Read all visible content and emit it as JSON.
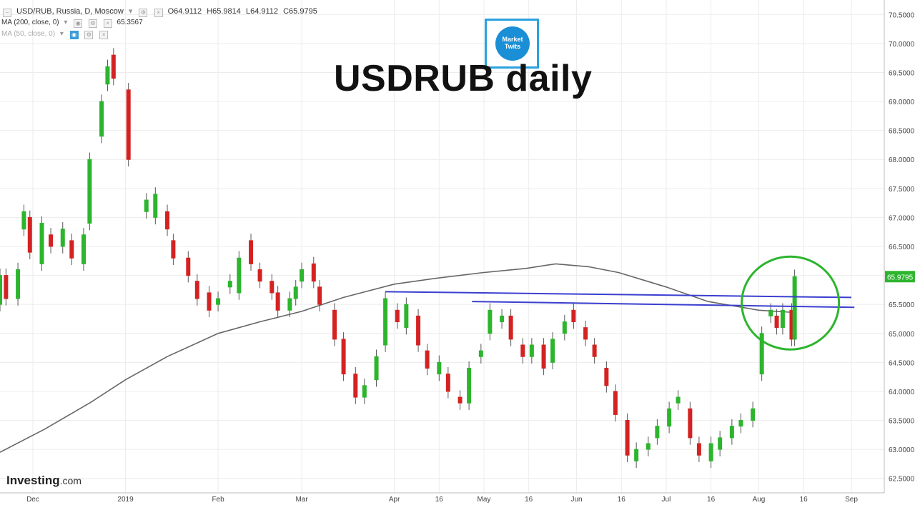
{
  "header": {
    "symbol": "USD/RUB, Russia, D, Moscow",
    "open": "O64.9112",
    "high": "H65.9814",
    "low": "L64.9112",
    "close": "C65.9795",
    "ma200_label": "MA (200, close, 0)",
    "ma200_value": "65.3567",
    "ma50_label": "MA (50, close, 0)"
  },
  "overlay_title": "USDRUB daily",
  "logo_text": "Market Twits",
  "branding": {
    "name": "Investing",
    "domain": ".com"
  },
  "colors": {
    "up": "#2db52d",
    "down": "#d42222",
    "ma": "#666666",
    "trendline": "#3a3fcf",
    "circle": "#2db52d",
    "price_tag": "#2db52d"
  },
  "chart_data": {
    "type": "candlestick",
    "title": "USDRUB daily",
    "price_tag": "65.9795",
    "ylim": [
      62.25,
      70.75
    ],
    "yticks": [
      "62.5000",
      "63.0000",
      "63.5000",
      "64.0000",
      "64.5000",
      "65.0000",
      "65.5000",
      "66.0000",
      "66.5000",
      "67.0000",
      "67.5000",
      "68.0000",
      "68.5000",
      "69.0000",
      "69.5000",
      "70.0000",
      "70.5000"
    ],
    "x_labels": [
      {
        "label": "Dec",
        "date": "2018-12-01"
      },
      {
        "label": "2019",
        "date": "2019-01-01"
      },
      {
        "label": "Feb",
        "date": "2019-02-01"
      },
      {
        "label": "Mar",
        "date": "2019-03-01"
      },
      {
        "label": "Apr",
        "date": "2019-04-01"
      },
      {
        "label": "16",
        "date": "2019-04-16"
      },
      {
        "label": "May",
        "date": "2019-05-01"
      },
      {
        "label": "16",
        "date": "2019-05-16"
      },
      {
        "label": "Jun",
        "date": "2019-06-01"
      },
      {
        "label": "16",
        "date": "2019-06-16"
      },
      {
        "label": "Jul",
        "date": "2019-07-01"
      },
      {
        "label": "16",
        "date": "2019-07-16"
      },
      {
        "label": "Aug",
        "date": "2019-08-01"
      },
      {
        "label": "16",
        "date": "2019-08-16"
      },
      {
        "label": "Sep",
        "date": "2019-09-01"
      }
    ],
    "x_range": [
      "2018-11-20",
      "2019-09-12"
    ],
    "candles": [
      [
        "2018-11-20",
        65.5,
        66.0
      ],
      [
        "2018-11-22",
        66.0,
        65.6
      ],
      [
        "2018-11-26",
        65.6,
        66.1
      ],
      [
        "2018-11-28",
        66.8,
        67.1
      ],
      [
        "2018-11-30",
        67.0,
        66.4
      ],
      [
        "2018-12-04",
        66.2,
        66.9
      ],
      [
        "2018-12-07",
        66.7,
        66.5
      ],
      [
        "2018-12-11",
        66.5,
        66.8
      ],
      [
        "2018-12-14",
        66.6,
        66.3
      ],
      [
        "2018-12-18",
        66.2,
        66.7
      ],
      [
        "2018-12-20",
        66.9,
        68.0
      ],
      [
        "2018-12-24",
        68.4,
        69.0
      ],
      [
        "2018-12-26",
        69.3,
        69.6
      ],
      [
        "2018-12-28",
        69.8,
        69.4
      ],
      [
        "2019-01-02",
        69.2,
        68.0
      ],
      [
        "2019-01-08",
        67.1,
        67.3
      ],
      [
        "2019-01-11",
        67.0,
        67.4
      ],
      [
        "2019-01-15",
        67.1,
        66.8
      ],
      [
        "2019-01-17",
        66.6,
        66.3
      ],
      [
        "2019-01-22",
        66.3,
        66.0
      ],
      [
        "2019-01-25",
        65.9,
        65.6
      ],
      [
        "2019-01-29",
        65.7,
        65.4
      ],
      [
        "2019-02-01",
        65.5,
        65.6
      ],
      [
        "2019-02-05",
        65.8,
        65.9
      ],
      [
        "2019-02-08",
        65.7,
        66.3
      ],
      [
        "2019-02-12",
        66.6,
        66.2
      ],
      [
        "2019-02-15",
        66.1,
        65.9
      ],
      [
        "2019-02-19",
        65.9,
        65.7
      ],
      [
        "2019-02-21",
        65.7,
        65.4
      ],
      [
        "2019-02-25",
        65.4,
        65.6
      ],
      [
        "2019-02-27",
        65.6,
        65.8
      ],
      [
        "2019-03-01",
        65.9,
        66.1
      ],
      [
        "2019-03-05",
        66.2,
        65.9
      ],
      [
        "2019-03-07",
        65.8,
        65.5
      ],
      [
        "2019-03-12",
        65.4,
        64.9
      ],
      [
        "2019-03-15",
        64.9,
        64.3
      ],
      [
        "2019-03-19",
        64.3,
        63.9
      ],
      [
        "2019-03-22",
        63.9,
        64.1
      ],
      [
        "2019-03-26",
        64.2,
        64.6
      ],
      [
        "2019-03-29",
        64.8,
        65.6
      ],
      [
        "2019-04-02",
        65.4,
        65.2
      ],
      [
        "2019-04-05",
        65.1,
        65.5
      ],
      [
        "2019-04-09",
        65.3,
        64.8
      ],
      [
        "2019-04-12",
        64.7,
        64.4
      ],
      [
        "2019-04-16",
        64.3,
        64.5
      ],
      [
        "2019-04-19",
        64.3,
        64.0
      ],
      [
        "2019-04-23",
        63.9,
        63.8
      ],
      [
        "2019-04-26",
        63.8,
        64.4
      ],
      [
        "2019-04-30",
        64.6,
        64.7
      ],
      [
        "2019-05-03",
        65.0,
        65.4
      ],
      [
        "2019-05-07",
        65.2,
        65.3
      ],
      [
        "2019-05-10",
        65.3,
        64.9
      ],
      [
        "2019-05-14",
        64.8,
        64.6
      ],
      [
        "2019-05-17",
        64.6,
        64.8
      ],
      [
        "2019-05-21",
        64.8,
        64.4
      ],
      [
        "2019-05-24",
        64.5,
        64.9
      ],
      [
        "2019-05-28",
        65.0,
        65.2
      ],
      [
        "2019-05-31",
        65.4,
        65.2
      ],
      [
        "2019-06-04",
        65.1,
        64.9
      ],
      [
        "2019-06-07",
        64.8,
        64.6
      ],
      [
        "2019-06-11",
        64.4,
        64.1
      ],
      [
        "2019-06-14",
        64.0,
        63.6
      ],
      [
        "2019-06-18",
        63.5,
        62.9
      ],
      [
        "2019-06-21",
        62.8,
        63.0
      ],
      [
        "2019-06-25",
        63.0,
        63.1
      ],
      [
        "2019-06-28",
        63.2,
        63.4
      ],
      [
        "2019-07-02",
        63.4,
        63.7
      ],
      [
        "2019-07-05",
        63.8,
        63.9
      ],
      [
        "2019-07-09",
        63.7,
        63.2
      ],
      [
        "2019-07-12",
        63.1,
        62.9
      ],
      [
        "2019-07-16",
        62.8,
        63.1
      ],
      [
        "2019-07-19",
        63.0,
        63.2
      ],
      [
        "2019-07-23",
        63.2,
        63.4
      ],
      [
        "2019-07-26",
        63.4,
        63.5
      ],
      [
        "2019-07-30",
        63.5,
        63.7
      ],
      [
        "2019-08-02",
        64.3,
        65.0
      ],
      [
        "2019-08-05",
        65.3,
        65.4
      ],
      [
        "2019-08-07",
        65.3,
        65.1
      ],
      [
        "2019-08-09",
        65.1,
        65.4
      ],
      [
        "2019-08-12",
        65.4,
        64.9
      ],
      [
        "2019-08-13",
        64.9,
        65.98
      ]
    ],
    "ma200": [
      [
        "2018-11-20",
        62.95
      ],
      [
        "2018-12-05",
        63.35
      ],
      [
        "2018-12-20",
        63.8
      ],
      [
        "2019-01-01",
        64.2
      ],
      [
        "2019-01-15",
        64.6
      ],
      [
        "2019-02-01",
        65.0
      ],
      [
        "2019-02-15",
        65.2
      ],
      [
        "2019-03-01",
        65.38
      ],
      [
        "2019-03-15",
        65.62
      ],
      [
        "2019-04-01",
        65.85
      ],
      [
        "2019-04-15",
        65.95
      ],
      [
        "2019-05-01",
        66.05
      ],
      [
        "2019-05-15",
        66.12
      ],
      [
        "2019-05-25",
        66.2
      ],
      [
        "2019-06-05",
        66.15
      ],
      [
        "2019-06-15",
        66.05
      ],
      [
        "2019-07-01",
        65.8
      ],
      [
        "2019-07-15",
        65.55
      ],
      [
        "2019-08-01",
        65.4
      ],
      [
        "2019-08-13",
        65.36
      ]
    ],
    "trendlines": [
      [
        [
          "2019-03-29",
          65.72
        ],
        [
          "2019-09-01",
          65.62
        ]
      ],
      [
        [
          "2019-04-27",
          65.55
        ],
        [
          "2019-09-02",
          65.45
        ]
      ]
    ],
    "highlight_circle": {
      "date": "2019-08-13",
      "price": 65.45
    }
  }
}
